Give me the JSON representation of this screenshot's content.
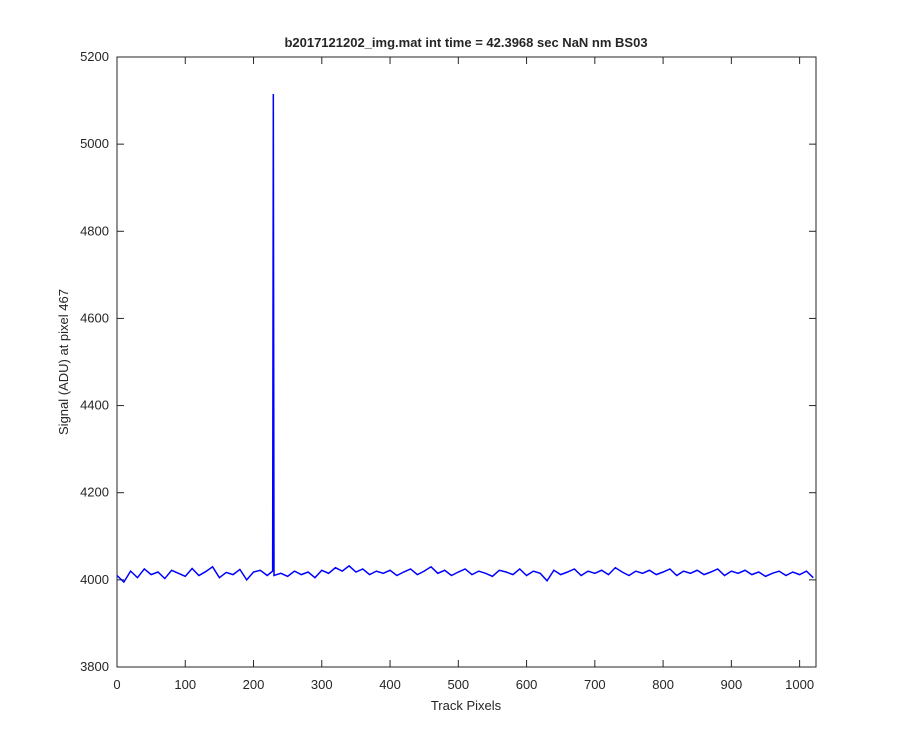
{
  "chart_data": {
    "type": "line",
    "title": "b2017121202_img.mat int time = 42.3968 sec  NaN nm BS03",
    "x_label": "Track Pixels",
    "y_label": "Signal (ADU) at pixel 467",
    "xlim": [
      0,
      1024
    ],
    "ylim": [
      3800,
      5200
    ],
    "xticks": [
      0,
      100,
      200,
      300,
      400,
      500,
      600,
      700,
      800,
      900,
      1000
    ],
    "yticks": [
      3800,
      4000,
      4200,
      4400,
      4600,
      4800,
      5000,
      5200
    ],
    "series": [
      {
        "color": "#0000ff",
        "x": [
          0,
          10,
          20,
          30,
          40,
          50,
          60,
          70,
          80,
          90,
          100,
          110,
          120,
          130,
          140,
          150,
          160,
          170,
          180,
          190,
          200,
          210,
          220,
          228,
          229,
          230,
          240,
          250,
          260,
          270,
          280,
          290,
          300,
          310,
          320,
          330,
          340,
          350,
          360,
          370,
          380,
          390,
          400,
          410,
          420,
          430,
          440,
          450,
          460,
          470,
          480,
          490,
          500,
          510,
          520,
          530,
          540,
          550,
          560,
          570,
          580,
          590,
          600,
          610,
          620,
          630,
          640,
          650,
          660,
          670,
          680,
          690,
          700,
          710,
          720,
          730,
          740,
          750,
          760,
          770,
          780,
          790,
          800,
          810,
          820,
          830,
          840,
          850,
          860,
          870,
          880,
          890,
          900,
          910,
          920,
          930,
          940,
          950,
          960,
          970,
          980,
          990,
          1000,
          1010,
          1020
        ],
        "values": [
          4010,
          3995,
          4020,
          4005,
          4025,
          4012,
          4018,
          4003,
          4022,
          4015,
          4008,
          4026,
          4010,
          4019,
          4030,
          4005,
          4017,
          4012,
          4024,
          4000,
          4018,
          4022,
          4010,
          4020,
          5115,
          4010,
          4015,
          4008,
          4020,
          4012,
          4018,
          4005,
          4022,
          4015,
          4028,
          4020,
          4032,
          4018,
          4025,
          4012,
          4020,
          4015,
          4022,
          4010,
          4018,
          4025,
          4012,
          4020,
          4030,
          4015,
          4022,
          4010,
          4018,
          4025,
          4012,
          4020,
          4015,
          4008,
          4022,
          4018,
          4012,
          4025,
          4010,
          4020,
          4015,
          3998,
          4022,
          4012,
          4018,
          4025,
          4010,
          4020,
          4015,
          4022,
          4012,
          4028,
          4018,
          4010,
          4020,
          4015,
          4022,
          4012,
          4018,
          4025,
          4010,
          4020,
          4015,
          4022,
          4012,
          4018,
          4025,
          4010,
          4020,
          4015,
          4022,
          4012,
          4018,
          4008,
          4015,
          4020,
          4010,
          4018,
          4012,
          4020,
          4005
        ]
      }
    ]
  }
}
